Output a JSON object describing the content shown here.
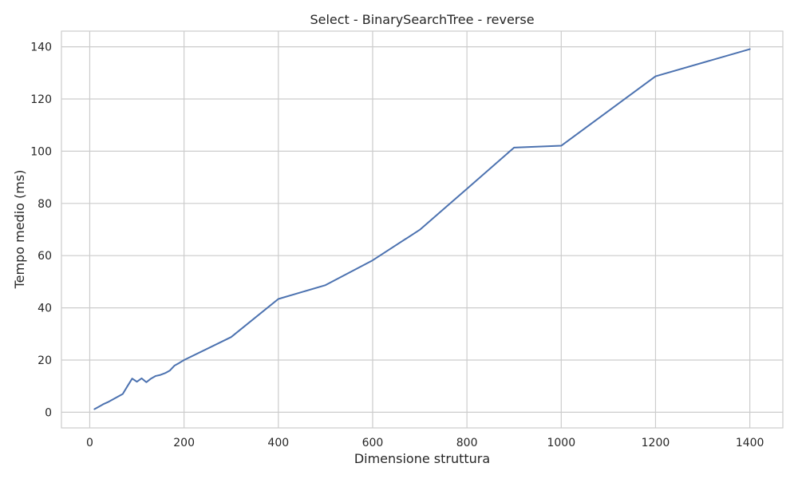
{
  "chart_data": {
    "type": "line",
    "title": "Select - BinarySearchTree - reverse",
    "xlabel": "Dimensione struttura",
    "ylabel": "Tempo medio (ms)",
    "xlim": [
      -60,
      1470
    ],
    "ylim": [
      -6,
      146
    ],
    "xticks": [
      0,
      200,
      400,
      600,
      800,
      1000,
      1200,
      1400
    ],
    "yticks": [
      0,
      20,
      40,
      60,
      80,
      100,
      120,
      140
    ],
    "grid": true,
    "legend": "none",
    "series": [
      {
        "color": "#4c72b0",
        "x": [
          10,
          20,
          30,
          40,
          50,
          60,
          70,
          80,
          90,
          100,
          110,
          120,
          130,
          140,
          150,
          160,
          170,
          180,
          190,
          200,
          300,
          400,
          500,
          600,
          700,
          800,
          900,
          1000,
          1200,
          1400
        ],
        "y": [
          1.2,
          2.2,
          3.2,
          4.0,
          5.0,
          6.0,
          7.0,
          10.0,
          12.9,
          11.7,
          13.0,
          11.5,
          12.9,
          13.9,
          14.3,
          15.0,
          16.0,
          17.9,
          18.9,
          20.0,
          28.8,
          43.4,
          48.7,
          58.2,
          69.9,
          85.6,
          101.4,
          102.1,
          128.7,
          139.1
        ]
      }
    ]
  }
}
